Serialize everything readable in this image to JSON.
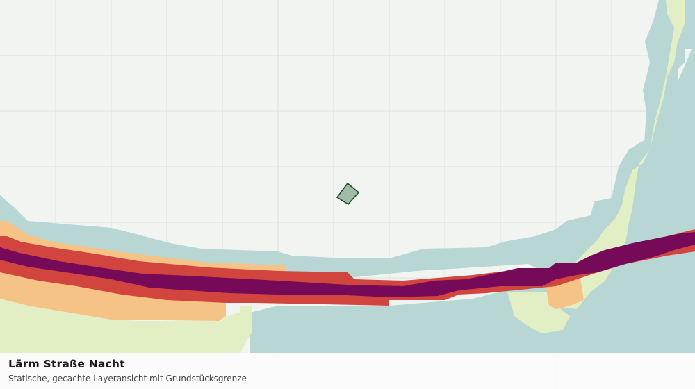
{
  "map": {
    "layer_title": "Lärm Straße Nacht",
    "layer_subtitle": "Statische, gecachte Layeransicht mit Grundstücksgrenze",
    "colors": {
      "background": "#f2f4f2",
      "grid": "#dfe3df",
      "noise_class_1": "#b8d6d3",
      "noise_class_2": "#e2efc4",
      "noise_class_3": "#f5c386",
      "noise_class_4": "#d2453e",
      "noise_class_5": "#760a58",
      "parcel_fill": "#9fbda7",
      "parcel_stroke": "#1d4a2c"
    }
  }
}
